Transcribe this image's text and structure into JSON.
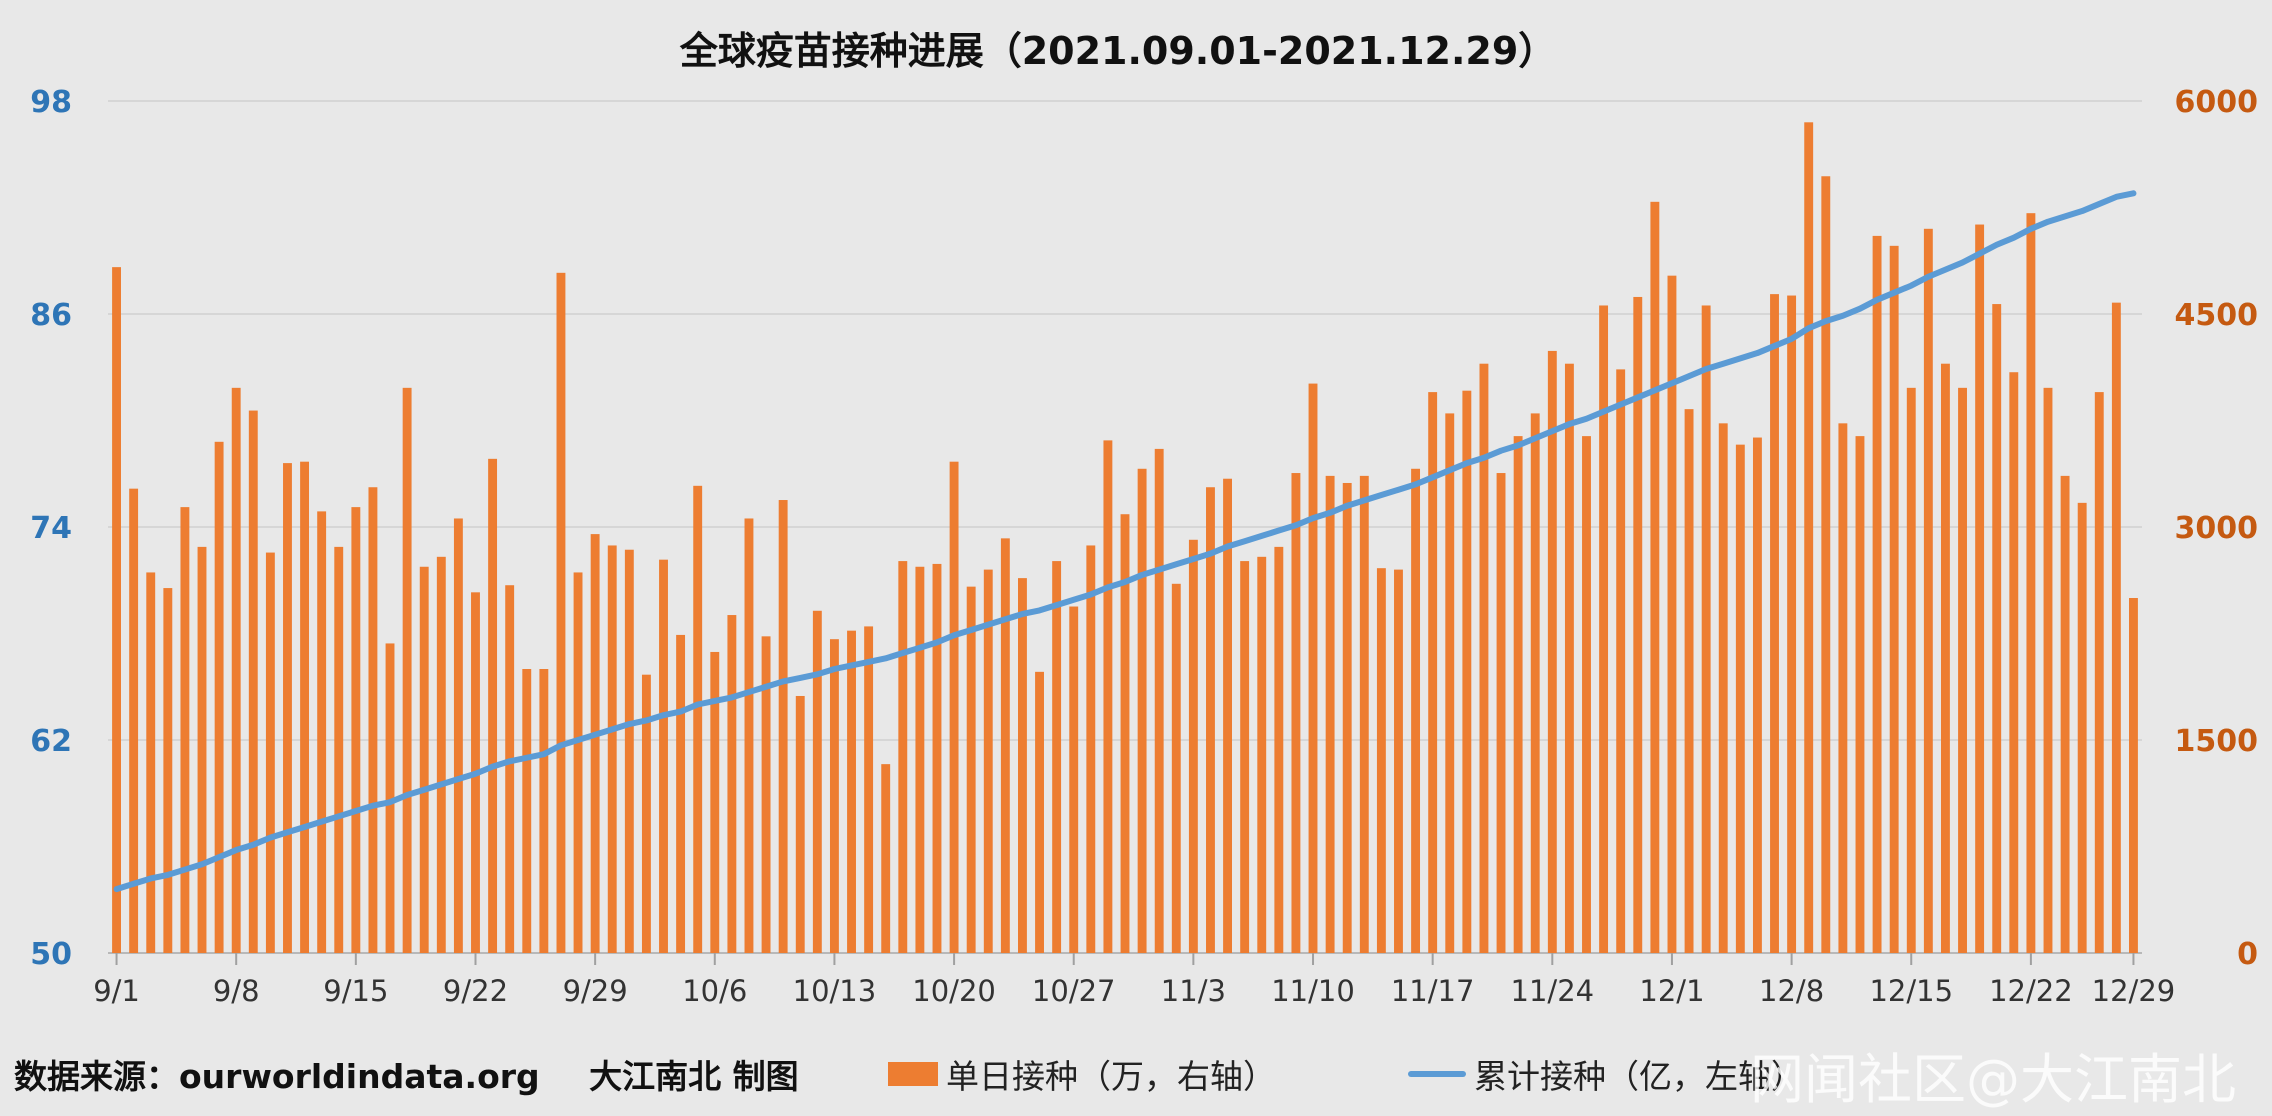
{
  "chart_data": {
    "type": "bar+line",
    "title": "全球疫苗接种进展（2021.09.01-2021.12.29）",
    "x_tick_labels": [
      "9/1",
      "9/8",
      "9/15",
      "9/22",
      "9/29",
      "10/6",
      "10/13",
      "10/20",
      "10/27",
      "11/3",
      "11/10",
      "11/17",
      "11/24",
      "12/1",
      "12/8",
      "12/15",
      "12/22",
      "12/29"
    ],
    "left_axis": {
      "ylim": [
        50,
        98
      ],
      "ticks": [
        50,
        62,
        74,
        86,
        98
      ],
      "color": "#2e75b6"
    },
    "right_axis": {
      "ylim": [
        0,
        6000
      ],
      "ticks": [
        0,
        1500,
        3000,
        4500,
        6000
      ],
      "color": "#c55a11"
    },
    "grid": true,
    "series": [
      {
        "name": "单日接种（万，右轴）",
        "type": "bar",
        "axis": "right",
        "color": "#ed7d31",
        "values": [
          4830,
          3270,
          2680,
          2570,
          3140,
          2860,
          3600,
          3980,
          3820,
          2820,
          3450,
          3460,
          3110,
          2860,
          3140,
          3280,
          2180,
          3980,
          2720,
          2790,
          3060,
          2540,
          3480,
          2590,
          2000,
          2000,
          4790,
          2680,
          2950,
          2870,
          2840,
          1960,
          2770,
          2240,
          3290,
          2120,
          2380,
          3060,
          2230,
          3190,
          1810,
          2410,
          2210,
          2270,
          2300,
          1330,
          2760,
          2720,
          2740,
          3460,
          2580,
          2700,
          2920,
          2640,
          1980,
          2760,
          2440,
          2870,
          3610,
          3090,
          3410,
          3550,
          2600,
          2910,
          3280,
          3340,
          2760,
          2790,
          2860,
          3380,
          4010,
          3360,
          3310,
          3360,
          2710,
          2700,
          3410,
          3950,
          3800,
          3960,
          4150,
          3380,
          3640,
          3800,
          4240,
          4150,
          3640,
          4560,
          4110,
          4620,
          5290,
          4770,
          3830,
          4560,
          3730,
          3580,
          3630,
          4640,
          4630,
          5850,
          5470,
          3730,
          3640,
          5050,
          4980,
          3980,
          5100,
          4150,
          3980,
          5130,
          4570,
          4090,
          5210,
          3980,
          3360,
          3170,
          3950,
          4580,
          2500
        ],
        "value_note": "daily doses"
      },
      {
        "name": "累计接种（亿，左轴）",
        "type": "line",
        "axis": "left",
        "color": "#5b9bd5",
        "values": [
          53.6,
          53.9,
          54.2,
          54.4,
          54.7,
          55.0,
          55.4,
          55.8,
          56.1,
          56.5,
          56.8,
          57.1,
          57.4,
          57.7,
          58.0,
          58.3,
          58.5,
          58.9,
          59.2,
          59.5,
          59.8,
          60.1,
          60.5,
          60.8,
          61.0,
          61.2,
          61.7,
          62.0,
          62.3,
          62.6,
          62.9,
          63.1,
          63.4,
          63.6,
          64.0,
          64.2,
          64.4,
          64.7,
          65.0,
          65.3,
          65.5,
          65.7,
          66.0,
          66.2,
          66.4,
          66.6,
          66.9,
          67.2,
          67.5,
          67.9,
          68.2,
          68.5,
          68.8,
          69.1,
          69.3,
          69.6,
          69.9,
          70.2,
          70.6,
          70.9,
          71.3,
          71.6,
          71.9,
          72.2,
          72.5,
          72.9,
          73.2,
          73.5,
          73.8,
          74.1,
          74.5,
          74.8,
          75.2,
          75.5,
          75.8,
          76.1,
          76.4,
          76.8,
          77.2,
          77.6,
          77.9,
          78.3,
          78.6,
          79.0,
          79.4,
          79.8,
          80.1,
          80.5,
          80.9,
          81.3,
          81.7,
          82.1,
          82.5,
          82.9,
          83.2,
          83.5,
          83.8,
          84.2,
          84.6,
          85.2,
          85.6,
          85.9,
          86.3,
          86.8,
          87.2,
          87.6,
          88.1,
          88.5,
          88.9,
          89.4,
          89.9,
          90.3,
          90.8,
          91.2,
          91.5,
          91.8,
          92.2,
          92.6,
          92.8
        ]
      }
    ]
  },
  "footer": {
    "source": "数据来源：ourworldindata.org",
    "author": "大江南北 制图"
  },
  "legend": {
    "bar_label": "单日接种（万，右轴）",
    "line_label": "累计接种（亿，左轴）"
  },
  "watermark": "网闻社区@大江南北"
}
